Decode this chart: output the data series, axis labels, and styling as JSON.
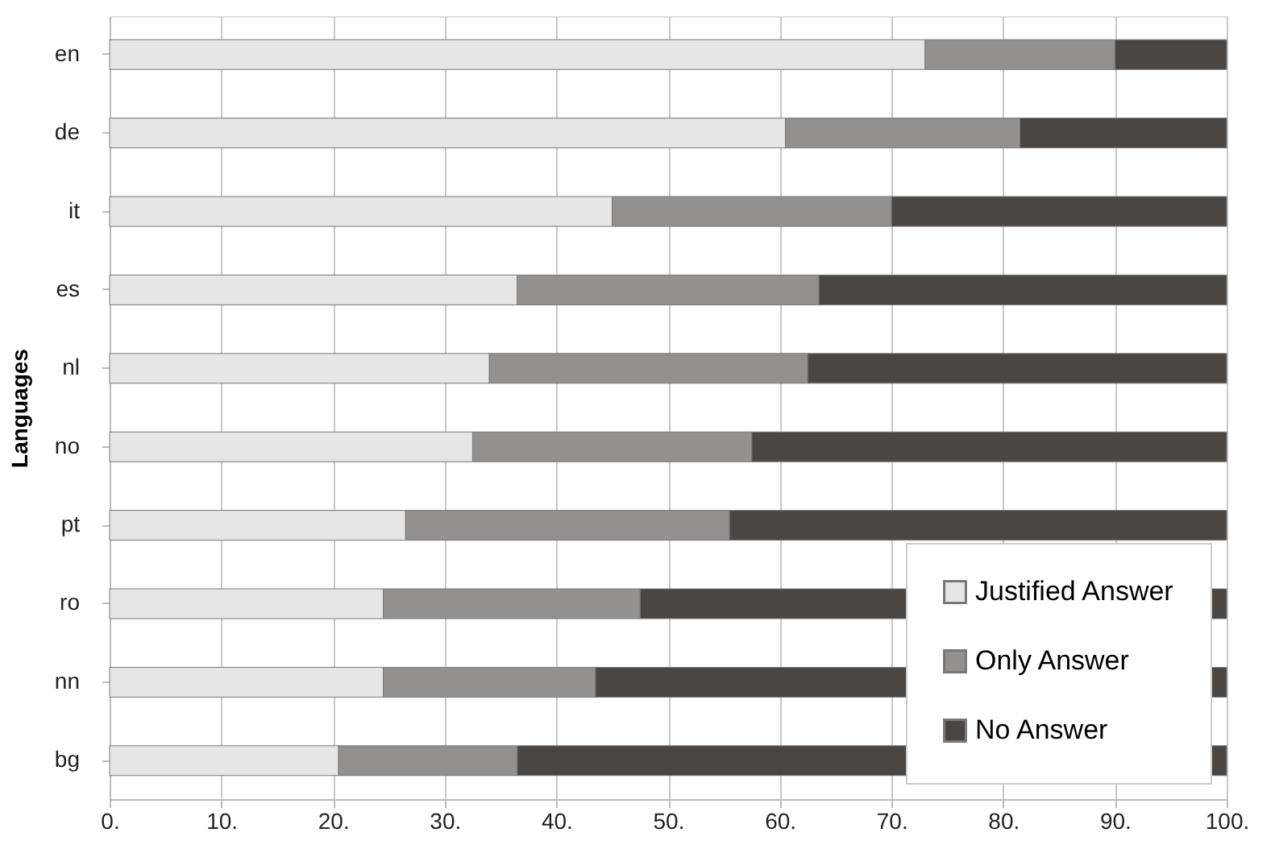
{
  "chart_data": {
    "type": "bar",
    "orientation": "horizontal",
    "stacked": true,
    "ylabel": "Languages",
    "categories": [
      "en",
      "de",
      "it",
      "es",
      "nl",
      "no",
      "pt",
      "ro",
      "nn",
      "bg"
    ],
    "series": [
      {
        "name": "Justified Answer",
        "color": "#e6e6e6",
        "values": [
          73,
          60.5,
          45,
          36.5,
          34,
          32.5,
          26.5,
          24.5,
          24.5,
          20.5
        ]
      },
      {
        "name": "Only Answer",
        "color": "#939090",
        "values": [
          17,
          21,
          25,
          27,
          28.5,
          25,
          29,
          23,
          19,
          16
        ]
      },
      {
        "name": "No Answer",
        "color": "#4a4644",
        "values": [
          10,
          18.5,
          30,
          36.5,
          37.5,
          42.5,
          44.5,
          52.5,
          56.5,
          63.5
        ]
      }
    ],
    "xlim": [
      0,
      100
    ],
    "xticks": [
      {
        "value": 0,
        "label": "0."
      },
      {
        "value": 10,
        "label": "10."
      },
      {
        "value": 20,
        "label": "20."
      },
      {
        "value": 30,
        "label": "30."
      },
      {
        "value": 40,
        "label": "40."
      },
      {
        "value": 50,
        "label": "50."
      },
      {
        "value": 60,
        "label": "60."
      },
      {
        "value": 70,
        "label": "70."
      },
      {
        "value": 80,
        "label": "80."
      },
      {
        "value": 90,
        "label": "90."
      },
      {
        "value": 100,
        "label": "100."
      }
    ],
    "grid": "x",
    "legend": "bottom right"
  }
}
